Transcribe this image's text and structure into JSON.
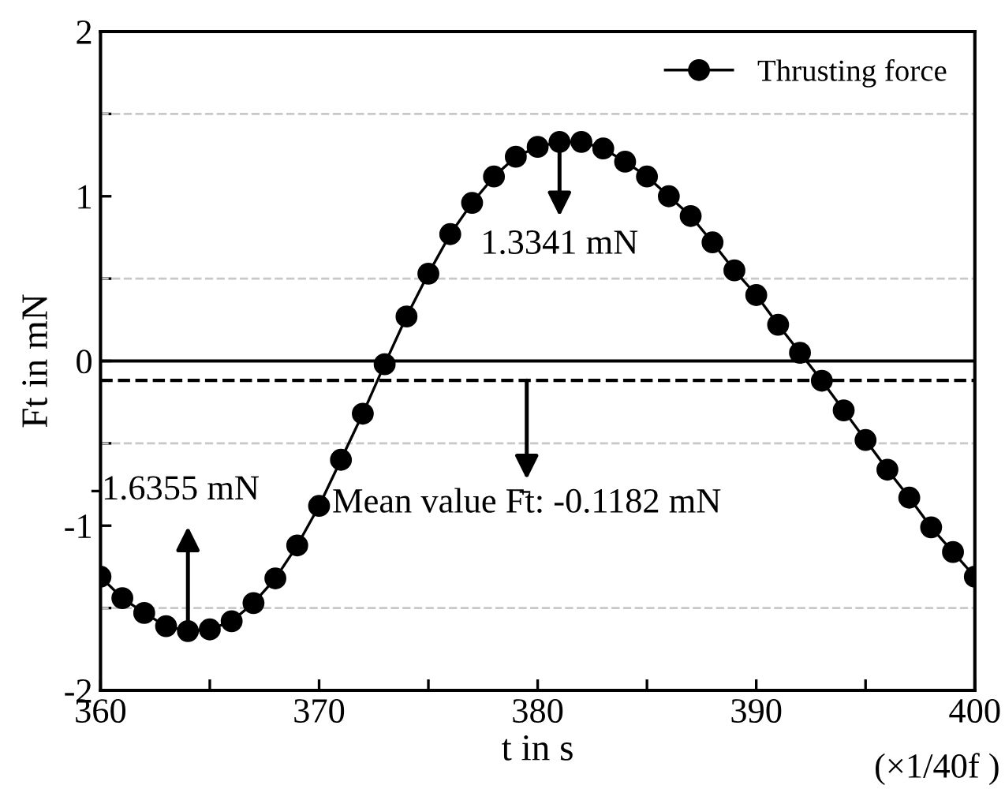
{
  "chart_data": {
    "type": "line",
    "xlabel": "t in s",
    "ylabel": "Ft in mN",
    "x": [
      360,
      361,
      362,
      363,
      364,
      365,
      366,
      367,
      368,
      369,
      370,
      371,
      372,
      373,
      374,
      375,
      376,
      377,
      378,
      379,
      380,
      381,
      382,
      383,
      384,
      385,
      386,
      387,
      388,
      389,
      390,
      391,
      392,
      393,
      394,
      395,
      396,
      397,
      398,
      399,
      400
    ],
    "series": [
      {
        "name": "Thrusting force",
        "color": "#000000",
        "values": [
          -1.31,
          -1.44,
          -1.53,
          -1.61,
          -1.64,
          -1.63,
          -1.58,
          -1.47,
          -1.32,
          -1.12,
          -0.88,
          -0.6,
          -0.32,
          -0.02,
          0.27,
          0.53,
          0.77,
          0.96,
          1.12,
          1.24,
          1.3,
          1.33,
          1.33,
          1.29,
          1.21,
          1.12,
          1.0,
          0.88,
          0.72,
          0.55,
          0.4,
          0.22,
          0.05,
          -0.12,
          -0.3,
          -0.48,
          -0.66,
          -0.83,
          -1.01,
          -1.16,
          -1.31
        ]
      }
    ],
    "xlim": [
      360,
      400
    ],
    "ylim": [
      -2,
      2
    ],
    "xticks": [
      360,
      {
        "value": 365,
        "label": null
      },
      370,
      {
        "value": 375,
        "label": null
      },
      380,
      {
        "value": 385,
        "label": null
      },
      390,
      {
        "value": 395,
        "label": null
      },
      400
    ],
    "yticks": [
      -2,
      {
        "value": -1.5,
        "label": null
      },
      -1,
      {
        "value": -0.5,
        "label": null
      },
      0,
      {
        "value": 0.5,
        "label": null
      },
      1,
      {
        "value": 1.5,
        "label": null
      },
      2
    ],
    "ref_lines": [
      {
        "axis": "y",
        "value": 1.5,
        "color": "#c8c8c8",
        "line_style": "dashed"
      },
      {
        "axis": "y",
        "value": 0.5,
        "color": "#c8c8c8",
        "line_style": "dashed"
      },
      {
        "axis": "y",
        "value": -0.5,
        "color": "#c8c8c8",
        "line_style": "dashed"
      },
      {
        "axis": "y",
        "value": -1.5,
        "color": "#c8c8c8",
        "line_style": "dashed"
      },
      {
        "axis": "y",
        "value": 0,
        "color": "#000000",
        "line_style": "solid"
      },
      {
        "axis": "y",
        "value": -0.1182,
        "color": "#000000",
        "line_style": "dashed",
        "label": "Mean value F̄t: -0.1182 mN"
      }
    ],
    "annotations": [
      {
        "text": "1.3341 mN",
        "x": 381,
        "y": 1.3341
      },
      {
        "text": "-1.6355 mN",
        "x": 364,
        "y": -1.6355
      },
      "(×1/40f )"
    ],
    "legend": "top right",
    "marker": "circle",
    "line_style": "solid"
  }
}
